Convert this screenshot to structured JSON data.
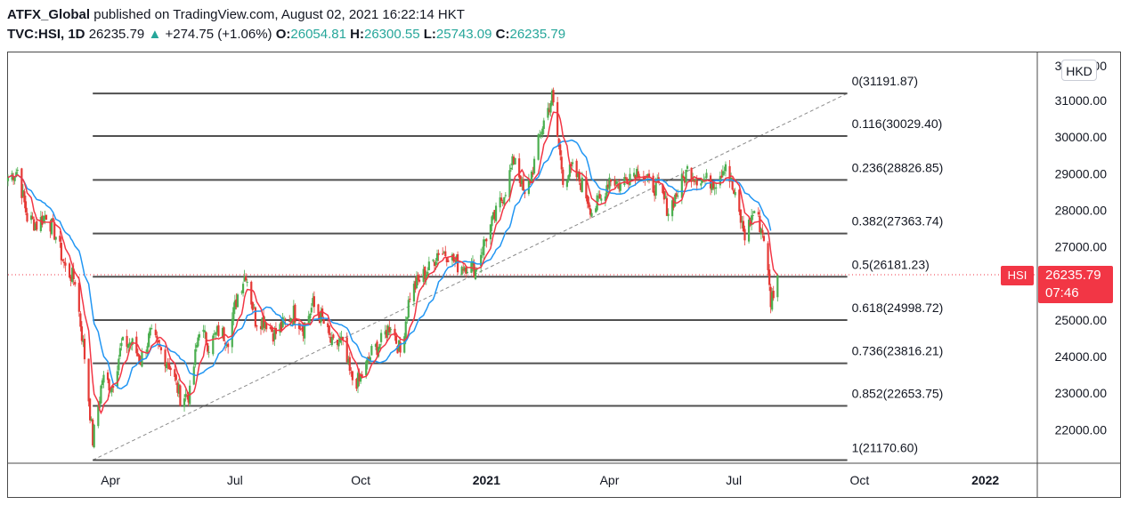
{
  "header": {
    "publisher": "ATFX_Global",
    "published_text": "published on TradingView.com, August 02, 2021 16:22:14 HKT",
    "symbol": "TVC:HSI, 1D",
    "last": "26235.79",
    "change_arrow": "▲",
    "change": "+274.75 (+1.06%)",
    "o_label": "O:",
    "o_value": "26054.81",
    "h_label": "H:",
    "h_value": "26300.55",
    "l_label": "L:",
    "l_value": "25743.09",
    "c_label": "C:",
    "c_value": "26235.79"
  },
  "currency_button": "HKD",
  "price_badge": {
    "name": "HSI",
    "price": "26235.79",
    "countdown": "07:46"
  },
  "colors": {
    "up": "#26a69a",
    "down": "#f23645",
    "candle_up": "#4caf50",
    "candle_down": "#e53935",
    "ma_fast": "#f23645",
    "ma_slow": "#2196f3"
  },
  "chart_data": {
    "type": "candlestick",
    "ylim": [
      21000,
      32200
    ],
    "y_ticks": [
      22000,
      23000,
      24000,
      25000,
      26000,
      27000,
      28000,
      29000,
      30000,
      31000
    ],
    "y_tick_labels": [
      "22000.00",
      "23000.00",
      "24000.00",
      "25000.00",
      "26000.00",
      "27000.00",
      "28000.00",
      "29000.00",
      "30000.00",
      "31000.00"
    ],
    "top_partial_label": "32000.00",
    "x_labels": [
      "Apr",
      "Jul",
      "Oct",
      "2021",
      "Apr",
      "Jul",
      "Oct",
      "2022"
    ],
    "x_label_dates": [
      "2020-04-01",
      "2020-07-01",
      "2020-10-01",
      "2021-01-01",
      "2021-04-01",
      "2021-07-01",
      "2021-10-01",
      "2022-01-01"
    ],
    "x_range": [
      "2020-01-17",
      "2022-02-08"
    ],
    "fib_levels": [
      {
        "ratio": "0",
        "price": 31191.87,
        "label": "0(31191.87)"
      },
      {
        "ratio": "0.116",
        "price": 30029.4,
        "label": "0.116(30029.40)"
      },
      {
        "ratio": "0.236",
        "price": 28826.85,
        "label": "0.236(28826.85)"
      },
      {
        "ratio": "0.382",
        "price": 27363.74,
        "label": "0.382(27363.74)"
      },
      {
        "ratio": "0.5",
        "price": 26181.23,
        "label": "0.5(26181.23)"
      },
      {
        "ratio": "0.618",
        "price": 24998.72,
        "label": "0.618(24998.72)"
      },
      {
        "ratio": "0.736",
        "price": 23816.21,
        "label": "0.736(23816.21)"
      },
      {
        "ratio": "0.852",
        "price": 22653.75,
        "label": "0.852(22653.75)"
      },
      {
        "ratio": "1",
        "price": 21170.6,
        "label": "1(21170.60)"
      }
    ],
    "fib_start_date": "2020-03-19",
    "fib_end_date": "2021-09-22",
    "trend_line": {
      "from": [
        "2020-03-19",
        21170.6
      ],
      "to": [
        "2021-09-22",
        31191.87
      ]
    },
    "last_price": 26235.79,
    "price_series": [
      [
        "2020-01-17",
        28900
      ],
      [
        "2020-01-24",
        29100
      ],
      [
        "2020-01-31",
        27800
      ],
      [
        "2020-02-07",
        27600
      ],
      [
        "2020-02-14",
        27900
      ],
      [
        "2020-02-21",
        27300
      ],
      [
        "2020-02-28",
        26400
      ],
      [
        "2020-03-06",
        26100
      ],
      [
        "2020-03-13",
        24000
      ],
      [
        "2020-03-19",
        21700
      ],
      [
        "2020-03-26",
        23400
      ],
      [
        "2020-04-02",
        23200
      ],
      [
        "2020-04-09",
        24300
      ],
      [
        "2020-04-16",
        24400
      ],
      [
        "2020-04-23",
        23900
      ],
      [
        "2020-04-30",
        24600
      ],
      [
        "2020-05-07",
        24200
      ],
      [
        "2020-05-14",
        23800
      ],
      [
        "2020-05-22",
        22900
      ],
      [
        "2020-05-29",
        22960
      ],
      [
        "2020-06-05",
        24800
      ],
      [
        "2020-06-12",
        24300
      ],
      [
        "2020-06-19",
        24700
      ],
      [
        "2020-06-26",
        24500
      ],
      [
        "2020-07-03",
        25700
      ],
      [
        "2020-07-09",
        26300
      ],
      [
        "2020-07-16",
        25000
      ],
      [
        "2020-07-23",
        25000
      ],
      [
        "2020-07-30",
        24600
      ],
      [
        "2020-08-06",
        24900
      ],
      [
        "2020-08-13",
        25200
      ],
      [
        "2020-08-20",
        24800
      ],
      [
        "2020-08-27",
        25400
      ],
      [
        "2020-09-03",
        25000
      ],
      [
        "2020-09-10",
        24300
      ],
      [
        "2020-09-17",
        24400
      ],
      [
        "2020-09-24",
        23400
      ],
      [
        "2020-09-30",
        23300
      ],
      [
        "2020-10-09",
        24100
      ],
      [
        "2020-10-16",
        24400
      ],
      [
        "2020-10-23",
        24900
      ],
      [
        "2020-10-30",
        24100
      ],
      [
        "2020-11-06",
        25700
      ],
      [
        "2020-11-13",
        26100
      ],
      [
        "2020-11-20",
        26400
      ],
      [
        "2020-11-27",
        26900
      ],
      [
        "2020-12-04",
        26800
      ],
      [
        "2020-12-11",
        26500
      ],
      [
        "2020-12-18",
        26500
      ],
      [
        "2020-12-24",
        26400
      ],
      [
        "2020-12-31",
        27200
      ],
      [
        "2021-01-08",
        27900
      ],
      [
        "2021-01-15",
        28600
      ],
      [
        "2021-01-22",
        29500
      ],
      [
        "2021-01-29",
        28300
      ],
      [
        "2021-02-05",
        29300
      ],
      [
        "2021-02-10",
        30200
      ],
      [
        "2021-02-18",
        31100
      ],
      [
        "2021-02-26",
        28900
      ],
      [
        "2021-03-05",
        29100
      ],
      [
        "2021-03-12",
        28700
      ],
      [
        "2021-03-19",
        28000
      ],
      [
        "2021-03-26",
        28300
      ],
      [
        "2021-04-01",
        28900
      ],
      [
        "2021-04-09",
        28700
      ],
      [
        "2021-04-16",
        29000
      ],
      [
        "2021-04-23",
        29100
      ],
      [
        "2021-04-30",
        28700
      ],
      [
        "2021-05-07",
        28600
      ],
      [
        "2021-05-14",
        28000
      ],
      [
        "2021-05-21",
        28500
      ],
      [
        "2021-05-28",
        29100
      ],
      [
        "2021-06-04",
        28900
      ],
      [
        "2021-06-11",
        28800
      ],
      [
        "2021-06-18",
        28800
      ],
      [
        "2021-06-25",
        29300
      ],
      [
        "2021-07-02",
        28300
      ],
      [
        "2021-07-09",
        27300
      ],
      [
        "2021-07-16",
        28000
      ],
      [
        "2021-07-23",
        27300
      ],
      [
        "2021-07-28",
        25500
      ],
      [
        "2021-08-02",
        26236
      ]
    ]
  }
}
